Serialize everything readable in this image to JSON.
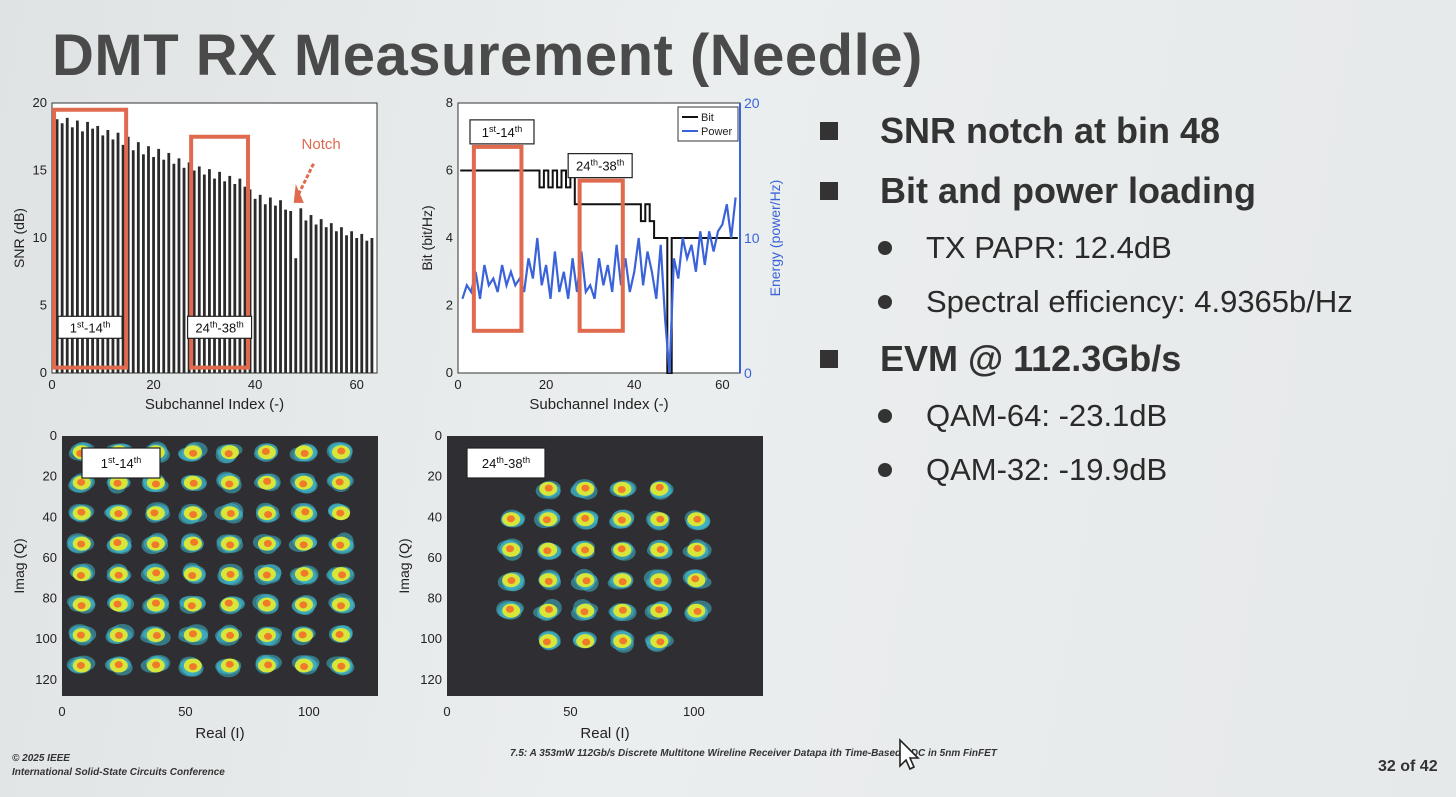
{
  "slide": {
    "title": "DMT RX Measurement (Needle)",
    "footer_copyright": "© 2025 IEEE",
    "footer_conference": "International Solid-State Circuits Conference",
    "footer_paper": "7.5: A 353mW 112Gb/s Discrete Multitone Wireline Receiver Datapa    ith Time-Based ADC in 5nm FinFET",
    "page_number": "32 of 42"
  },
  "bullets": [
    {
      "level": 1,
      "text": "SNR notch at bin 48"
    },
    {
      "level": 1,
      "text": "Bit and power loading"
    },
    {
      "level": 2,
      "text": "TX PAPR: 12.4dB"
    },
    {
      "level": 2,
      "text": "Spectral efficiency: 4.9365b/Hz"
    },
    {
      "level": 1,
      "text": "EVM @ 112.3Gb/s"
    },
    {
      "level": 2,
      "text": "QAM-64: -23.1dB"
    },
    {
      "level": 2,
      "text": "QAM-32: -19.9dB"
    }
  ],
  "chart_data": [
    {
      "type": "bar",
      "xlabel": "Subchannel Index (-)",
      "ylabel": "SNR (dB)",
      "xlim": [
        0,
        64
      ],
      "ylim": [
        0,
        20
      ],
      "xticks": [
        0,
        20,
        40,
        60
      ],
      "yticks": [
        0,
        5,
        10,
        15,
        20
      ],
      "x": [
        1,
        2,
        3,
        4,
        5,
        6,
        7,
        8,
        9,
        10,
        11,
        12,
        13,
        14,
        15,
        16,
        17,
        18,
        19,
        20,
        21,
        22,
        23,
        24,
        25,
        26,
        27,
        28,
        29,
        30,
        31,
        32,
        33,
        34,
        35,
        36,
        37,
        38,
        39,
        40,
        41,
        42,
        43,
        44,
        45,
        46,
        47,
        48,
        49,
        50,
        51,
        52,
        53,
        54,
        55,
        56,
        57,
        58,
        59,
        60,
        61,
        62,
        63
      ],
      "values": [
        18.8,
        18.5,
        18.9,
        18.2,
        18.7,
        17.9,
        18.6,
        18.1,
        18.3,
        17.6,
        18.0,
        17.3,
        17.8,
        16.9,
        17.5,
        16.5,
        17.1,
        16.2,
        16.8,
        16.0,
        16.6,
        15.8,
        16.3,
        15.5,
        15.9,
        15.2,
        15.6,
        15.0,
        15.3,
        14.7,
        15.1,
        14.4,
        14.9,
        14.2,
        14.6,
        14.0,
        14.4,
        13.8,
        13.6,
        12.9,
        13.2,
        12.5,
        13.0,
        12.4,
        12.8,
        12.1,
        12.0,
        8.5,
        12.2,
        11.3,
        11.7,
        11.0,
        11.4,
        10.8,
        11.1,
        10.5,
        10.8,
        10.2,
        10.5,
        10.0,
        10.3,
        9.8,
        10.0
      ],
      "annotation": "Notch",
      "boxes": [
        {
          "label_sup1": "st",
          "label_sup2": "th",
          "label_a": "1",
          "label_b": "-14",
          "x": [
            1,
            14
          ]
        },
        {
          "label_sup1": "th",
          "label_sup2": "th",
          "label_a": "24",
          "label_b": "-38",
          "x": [
            28,
            38
          ]
        }
      ]
    },
    {
      "type": "line",
      "xlabel": "Subchannel Index (-)",
      "ylabel": "Bit (bit/Hz)",
      "y2label": "Energy (power/Hz)",
      "xlim": [
        0,
        64
      ],
      "ylim": [
        0,
        8
      ],
      "y2lim": [
        0,
        20
      ],
      "xticks": [
        0,
        20,
        40,
        60
      ],
      "yticks": [
        0,
        2,
        4,
        6,
        8
      ],
      "y2ticks": [
        0,
        10,
        20
      ],
      "legend": "top-right",
      "series": [
        {
          "name": "Bit",
          "axis": "left",
          "color": "#111111",
          "x": [
            1,
            2,
            3,
            4,
            5,
            6,
            7,
            8,
            9,
            10,
            11,
            12,
            13,
            14,
            15,
            16,
            17,
            18,
            19,
            20,
            21,
            22,
            23,
            24,
            25,
            26,
            27,
            28,
            29,
            30,
            31,
            32,
            33,
            34,
            35,
            36,
            37,
            38,
            39,
            40,
            41,
            42,
            43,
            44,
            45,
            46,
            47,
            48,
            49,
            50,
            51,
            52,
            53,
            54,
            55,
            56,
            57,
            58,
            59,
            60,
            61,
            62,
            63
          ],
          "values": [
            6,
            6,
            6,
            6,
            6,
            6,
            6,
            6,
            6,
            6,
            6,
            6,
            6,
            6,
            6,
            6,
            6,
            6,
            5.5,
            6,
            5.5,
            6,
            5.5,
            6,
            5.5,
            6,
            5,
            5,
            5,
            5,
            5,
            5,
            5,
            5,
            5,
            5,
            5,
            5,
            5,
            5,
            5,
            4.5,
            5,
            4.5,
            4,
            4,
            4,
            0,
            4,
            4,
            4,
            4,
            4,
            4,
            4,
            4,
            4,
            4,
            4,
            4,
            4,
            4,
            4
          ]
        },
        {
          "name": "Power",
          "axis": "right",
          "color": "#3a63d9",
          "x": [
            1,
            2,
            3,
            4,
            5,
            6,
            7,
            8,
            9,
            10,
            11,
            12,
            13,
            14,
            15,
            16,
            17,
            18,
            19,
            20,
            21,
            22,
            23,
            24,
            25,
            26,
            27,
            28,
            29,
            30,
            31,
            32,
            33,
            34,
            35,
            36,
            37,
            38,
            39,
            40,
            41,
            42,
            43,
            44,
            45,
            46,
            47,
            48,
            49,
            50,
            51,
            52,
            53,
            54,
            55,
            56,
            57,
            58,
            59,
            60,
            61,
            62,
            63
          ],
          "values": [
            5.5,
            6.5,
            6.0,
            7.5,
            5.5,
            8.0,
            6.5,
            7.0,
            6.0,
            8.0,
            6.5,
            7.5,
            6.5,
            7.0,
            6.0,
            8.5,
            7.0,
            10.0,
            6.5,
            8.0,
            5.5,
            9.0,
            6.0,
            7.5,
            5.5,
            8.5,
            6.0,
            9.0,
            6.0,
            6.5,
            5.5,
            8.5,
            6.5,
            8.0,
            6.0,
            9.5,
            6.5,
            8.5,
            6.0,
            7.5,
            10.0,
            6.5,
            9.0,
            7.5,
            5.5,
            9.5,
            4.0,
            0.0,
            8.5,
            7.0,
            10.0,
            8.5,
            9.5,
            7.5,
            10.5,
            8.0,
            10.5,
            9.0,
            10.5,
            11.0,
            12.5,
            10.0,
            13.0
          ]
        }
      ],
      "boxes": [
        {
          "label_a": "1",
          "label_sup1": "st",
          "label_b": "-14",
          "label_sup2": "th",
          "x": [
            4,
            14
          ]
        },
        {
          "label_a": "24",
          "label_sup1": "th",
          "label_b": "-38",
          "label_sup2": "th",
          "x": [
            28,
            37
          ]
        }
      ]
    },
    {
      "type": "scatter",
      "title_box": {
        "label_a": "1",
        "label_sup1": "st",
        "label_b": "-14",
        "label_sup2": "th"
      },
      "xlabel": "Real (I)",
      "ylabel": "Imag (Q)",
      "xlim": [
        0,
        128
      ],
      "ylim": [
        128,
        0
      ],
      "xticks": [
        0,
        50,
        100
      ],
      "yticks": [
        0,
        20,
        40,
        60,
        80,
        100,
        120
      ],
      "constellation": "QAM-64",
      "grid": [
        8,
        8
      ],
      "centers": [
        8,
        23,
        38,
        53,
        68,
        83,
        98,
        113
      ]
    },
    {
      "type": "scatter",
      "title_box": {
        "label_a": "24",
        "label_sup1": "th",
        "label_b": "-38",
        "label_sup2": "th"
      },
      "xlabel": "Real (I)",
      "ylabel": "Imag (Q)",
      "xlim": [
        0,
        128
      ],
      "ylim": [
        128,
        0
      ],
      "xticks": [
        0,
        50,
        100
      ],
      "yticks": [
        0,
        20,
        40,
        60,
        80,
        100,
        120
      ],
      "constellation": "QAM-32",
      "grid": [
        6,
        6
      ],
      "centers": [
        26,
        41,
        56,
        71,
        86,
        101
      ]
    }
  ],
  "colors": {
    "box": "#e06a4e",
    "heat_outer": "#3fb7c8",
    "heat_mid": "#d8e63a",
    "heat_core": "#f07a2a",
    "heat_bg": "#2e2e33"
  }
}
